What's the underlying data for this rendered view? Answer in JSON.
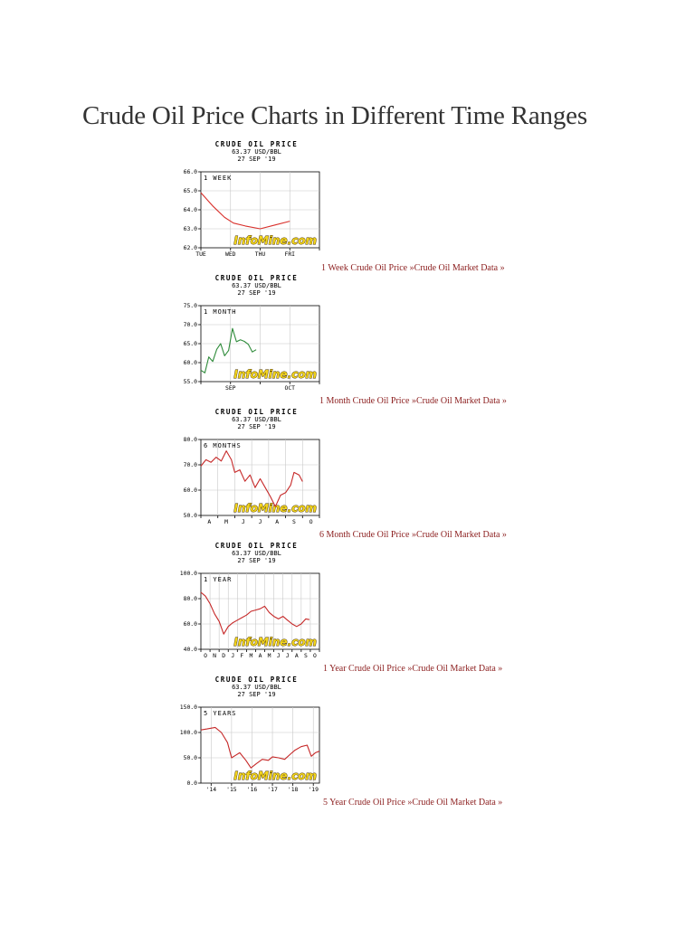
{
  "page": {
    "title": "Crude Oil Price Charts in Different Time Ranges"
  },
  "chart_data": [
    {
      "type": "line",
      "header": {
        "title": "CRUDE OIL PRICE",
        "price": "63.37 USD/BBL",
        "date": "27 SEP '19"
      },
      "range_label": "1 WEEK",
      "ylim": [
        62,
        66
      ],
      "ytick_values": [
        62,
        63,
        64,
        65,
        66
      ],
      "ytick_labels": [
        "62.0",
        "63.0",
        "64.0",
        "65.0",
        "66.0"
      ],
      "xlim": [
        0,
        4
      ],
      "xtick_values": [
        0,
        1,
        2,
        3,
        4
      ],
      "xtick_labels": [
        "TUE",
        "WED",
        "THU",
        "FRI"
      ],
      "xtick_label_positions": [
        0,
        1,
        2,
        3
      ],
      "x": [
        0,
        0.4,
        0.8,
        1.1,
        1.5,
        2.0,
        2.5,
        3.0
      ],
      "y": [
        64.9,
        64.2,
        63.6,
        63.3,
        63.15,
        63.0,
        63.2,
        63.4
      ],
      "line_color": "#d9302b",
      "watermark": "InfoMine.com",
      "link": {
        "prefix": "1 Week Crude Oil Price",
        "suffix": " »Crude Oil Market Data »"
      }
    },
    {
      "type": "line",
      "header": {
        "title": "CRUDE OIL PRICE",
        "price": "63.37 USD/BBL",
        "date": "27 SEP '19"
      },
      "range_label": "1 MONTH",
      "ylim": [
        55,
        75
      ],
      "ytick_values": [
        55,
        60,
        65,
        70,
        75
      ],
      "ytick_labels": [
        "55.0",
        "60.0",
        "65.0",
        "70.0",
        "75.0"
      ],
      "xlim": [
        0,
        60
      ],
      "xtick_values": [
        0,
        15,
        30,
        45,
        60
      ],
      "xtick_labels": [
        "SEP",
        "OCT"
      ],
      "xtick_label_positions": [
        15,
        45
      ],
      "x": [
        0,
        2,
        4,
        6,
        8,
        10,
        12,
        14,
        16,
        18,
        20,
        22,
        24,
        26,
        28
      ],
      "y": [
        58,
        57.3,
        61.5,
        60.3,
        63.5,
        65,
        61.8,
        63.2,
        69,
        65.5,
        66,
        65.6,
        64.8,
        62.8,
        63.4
      ],
      "line_color": "#2e8b3a",
      "watermark": "InfoMine.com",
      "link": {
        "prefix": "1 Month Crude Oil Price",
        "suffix": " »Crude Oil Market Data »"
      }
    },
    {
      "type": "line",
      "header": {
        "title": "CRUDE OIL PRICE",
        "price": "63.37 USD/BBL",
        "date": "27 SEP '19"
      },
      "range_label": "6 MONTHS",
      "ylim": [
        50,
        80
      ],
      "ytick_values": [
        50,
        60,
        70,
        80
      ],
      "ytick_labels": [
        "50.0",
        "60.0",
        "70.0",
        "80.0"
      ],
      "xlim": [
        0,
        7
      ],
      "xtick_values": [
        0,
        1,
        2,
        3,
        4,
        5,
        6,
        7
      ],
      "xtick_labels": [
        "A",
        "M",
        "J",
        "J",
        "A",
        "S",
        "O"
      ],
      "xtick_label_positions": [
        0.5,
        1.5,
        2.5,
        3.5,
        4.5,
        5.5,
        6.5
      ],
      "x": [
        0,
        0.3,
        0.6,
        0.9,
        1.2,
        1.5,
        1.8,
        2.0,
        2.3,
        2.6,
        2.9,
        3.2,
        3.5,
        3.8,
        4.1,
        4.4,
        4.7,
        5.0,
        5.3,
        5.5,
        5.8,
        6.0
      ],
      "y": [
        69.5,
        72,
        71,
        73,
        71.5,
        75.5,
        72,
        67,
        68,
        63.5,
        66,
        61,
        64.5,
        61,
        57.5,
        53.5,
        58,
        59,
        62,
        67,
        66,
        63.4
      ],
      "line_color": "#c62828",
      "watermark": "InfoMine.com",
      "link": {
        "prefix": "6 Month Crude Oil Price",
        "suffix": " »Crude Oil Market Data »"
      }
    },
    {
      "type": "line",
      "header": {
        "title": "CRUDE OIL PRICE",
        "price": "63.37 USD/BBL",
        "date": "27 SEP '19"
      },
      "range_label": "1 YEAR",
      "ylim": [
        40,
        100
      ],
      "ytick_values": [
        40,
        60,
        80,
        100
      ],
      "ytick_labels": [
        "40.0",
        "60.0",
        "80.0",
        "100.0"
      ],
      "xlim": [
        0,
        13
      ],
      "xtick_values": [
        0,
        1,
        2,
        3,
        4,
        5,
        6,
        7,
        8,
        9,
        10,
        11,
        12,
        13
      ],
      "xtick_labels": [
        "O",
        "N",
        "D",
        "J",
        "F",
        "M",
        "A",
        "M",
        "J",
        "J",
        "A",
        "S",
        "O"
      ],
      "xtick_label_positions": [
        0.5,
        1.5,
        2.5,
        3.5,
        4.5,
        5.5,
        6.5,
        7.5,
        8.5,
        9.5,
        10.5,
        11.5,
        12.5
      ],
      "x": [
        0,
        0.5,
        1.0,
        1.5,
        2.0,
        2.5,
        3.0,
        3.5,
        4.0,
        4.5,
        5.0,
        5.5,
        6.0,
        6.5,
        7.0,
        7.5,
        8.0,
        8.5,
        9.0,
        9.5,
        10.0,
        10.5,
        11.0,
        11.5,
        11.9
      ],
      "y": [
        85,
        82,
        76,
        68,
        62,
        52,
        58,
        61,
        63,
        65,
        67,
        70,
        71,
        72,
        74,
        69,
        66,
        64,
        66,
        63,
        60,
        58,
        60,
        64,
        63.4
      ],
      "line_color": "#c62828",
      "watermark": "InfoMine.com",
      "link": {
        "prefix": "1 Year Crude Oil Price",
        "suffix": " »Crude Oil Market Data »"
      }
    },
    {
      "type": "line",
      "header": {
        "title": "CRUDE OIL PRICE",
        "price": "63.37 USD/BBL",
        "date": "27 SEP '19"
      },
      "range_label": "5 YEARS",
      "ylim": [
        0,
        150
      ],
      "ytick_values": [
        0,
        50,
        100,
        150
      ],
      "ytick_labels": [
        "0.0",
        "50.0",
        "100.0",
        "150.0"
      ],
      "xlim": [
        2013.5,
        2019.3
      ],
      "xtick_values": [
        2014,
        2015,
        2016,
        2017,
        2018,
        2019
      ],
      "xtick_labels": [
        "'14",
        "'15",
        "'16",
        "'17",
        "'18",
        "'19"
      ],
      "xtick_label_positions": [
        2014,
        2015,
        2016,
        2017,
        2018,
        2019
      ],
      "x": [
        2013.5,
        2013.8,
        2014.2,
        2014.5,
        2014.8,
        2015.0,
        2015.2,
        2015.4,
        2015.7,
        2015.95,
        2016.2,
        2016.5,
        2016.8,
        2017.0,
        2017.3,
        2017.6,
        2017.9,
        2018.1,
        2018.4,
        2018.7,
        2018.9,
        2019.1,
        2019.3
      ],
      "y": [
        105,
        107,
        110,
        100,
        80,
        50,
        55,
        60,
        45,
        30,
        38,
        47,
        45,
        52,
        50,
        47,
        58,
        65,
        72,
        75,
        53,
        60,
        63
      ],
      "line_color": "#c62828",
      "watermark": "InfoMine.com",
      "link": {
        "prefix": "5 Year Crude Oil Price",
        "suffix": " »Crude Oil Market Data »"
      }
    }
  ]
}
